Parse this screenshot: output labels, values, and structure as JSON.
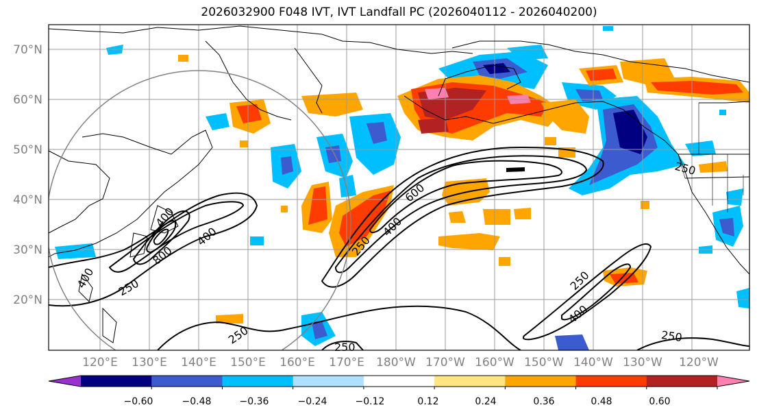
{
  "title": "2026032900 F048 IVT, IVT Landfall PC (2026040112 - 2026040200)",
  "lat_labels": [
    "70°N",
    "60°N",
    "50°N",
    "40°N",
    "30°N",
    "20°N"
  ],
  "lon_labels": [
    "120°E",
    "130°E",
    "140°E",
    "150°E",
    "160°E",
    "170°E",
    "180°W",
    "170°W",
    "160°W",
    "150°W",
    "140°W",
    "130°W",
    "120°W"
  ],
  "contour_labels": [
    "600",
    "400",
    "250",
    "400",
    "800",
    "400",
    "250",
    "250",
    "400",
    "250",
    "250",
    "250",
    "400",
    "250"
  ],
  "colorbar": {
    "tick_labels": [
      "−0.60",
      "−0.48",
      "−0.36",
      "−0.24",
      "−0.12",
      "0.12",
      "0.24",
      "0.36",
      "0.48",
      "0.60"
    ],
    "colors": [
      "#9b30d0",
      "#000080",
      "#3b5bcf",
      "#00bfff",
      "#b0e0ff",
      "#ffffff",
      "#ffe680",
      "#ffa500",
      "#ff3c00",
      "#b22222",
      "#ff80b0"
    ]
  }
}
